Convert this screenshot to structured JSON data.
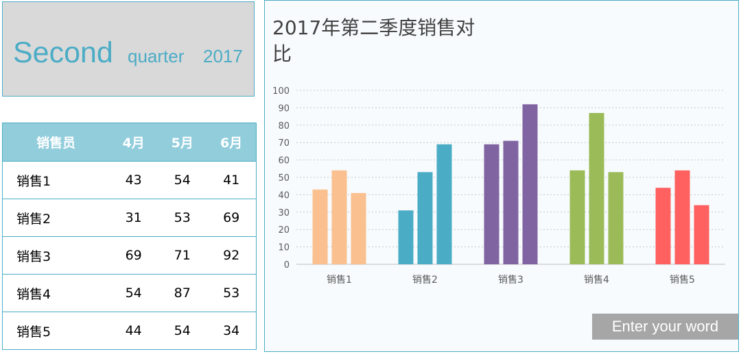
{
  "title": {
    "big": "Second",
    "small": "quarter",
    "year": "2017"
  },
  "table": {
    "headers": [
      "销售员",
      "4月",
      "5月",
      "6月"
    ],
    "rows": [
      [
        "销售1",
        "43",
        "54",
        "41"
      ],
      [
        "销售2",
        "31",
        "53",
        "69"
      ],
      [
        "销售3",
        "69",
        "71",
        "92"
      ],
      [
        "销售4",
        "54",
        "87",
        "53"
      ],
      [
        "销售5",
        "44",
        "54",
        "34"
      ]
    ]
  },
  "chart_data": {
    "type": "bar",
    "title": "2017年第二季度销售对比",
    "categories": [
      "销售1",
      "销售2",
      "销售3",
      "销售4",
      "销售5"
    ],
    "series": [
      {
        "values": [
          43,
          31,
          69,
          54,
          44
        ]
      },
      {
        "values": [
          54,
          53,
          71,
          87,
          54
        ]
      },
      {
        "values": [
          41,
          69,
          92,
          53,
          34
        ]
      }
    ],
    "colors": [
      "#fac090",
      "#4bacc6",
      "#8064a2",
      "#9bbb59",
      "#ff6161"
    ],
    "yticks": [
      "0",
      "10",
      "20",
      "30",
      "40",
      "50",
      "60",
      "70",
      "80",
      "90",
      "100"
    ],
    "ylim": [
      0,
      100
    ],
    "grid": true
  },
  "button": {
    "label": "Enter your word"
  }
}
